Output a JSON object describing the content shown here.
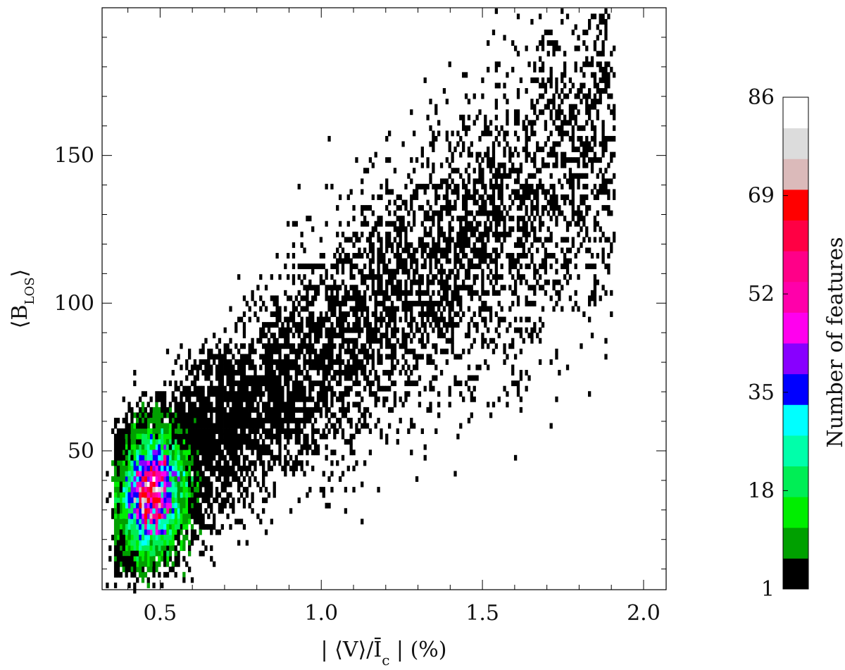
{
  "chart_data": {
    "type": "heatmap",
    "subtype": "2d-histogram-density",
    "xlabel": "| ⟨V⟩/Ī",
    "xlabel_sub": "c",
    "xlabel_tail": " | (%)",
    "ylabel": "⟨B",
    "ylabel_sub": "LOS",
    "ylabel_tail": "⟩",
    "xlim": [
      0.32,
      2.07
    ],
    "ylim": [
      3,
      200
    ],
    "x_ticks": [
      "0.5",
      "1.0",
      "1.5",
      "2.0"
    ],
    "x_tick_values": [
      0.5,
      1.0,
      1.5,
      2.0
    ],
    "y_ticks": [
      "50",
      "100",
      "150"
    ],
    "y_tick_values": [
      50,
      100,
      150
    ],
    "grid": false,
    "density_peak": {
      "x": 0.45,
      "y": 35,
      "count": 86
    },
    "trend": {
      "x": [
        0.4,
        0.8,
        1.2,
        1.6,
        1.9
      ],
      "y": [
        35,
        65,
        100,
        130,
        160
      ]
    },
    "colorbar": {
      "title": "Number of features",
      "tick_labels": [
        "1",
        "18",
        "35",
        "52",
        "69",
        "86"
      ],
      "tick_values": [
        1,
        18,
        35,
        52,
        69,
        86
      ],
      "range": [
        1,
        86
      ],
      "colors": [
        "#000000",
        "#00a000",
        "#00ee00",
        "#00ee55",
        "#00ffaa",
        "#00ffff",
        "#0000ff",
        "#8800ff",
        "#ff00ee",
        "#ff00aa",
        "#ff0088",
        "#ff0044",
        "#ff0000",
        "#dbbaba",
        "#dcdcdc",
        "#ffffff"
      ]
    }
  }
}
